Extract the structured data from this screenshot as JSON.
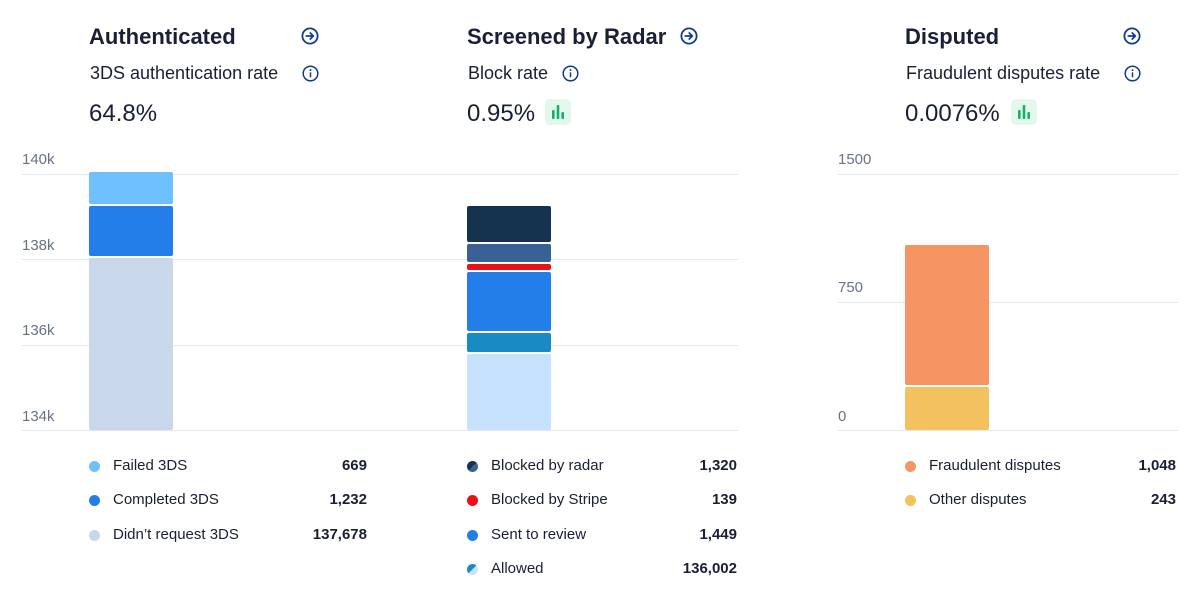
{
  "chart_data": [
    {
      "type": "bar",
      "title": "Authenticated",
      "metric_label": "3DS authentication rate",
      "metric_value": "64.8%",
      "y_ticks": [
        "140k",
        "138k",
        "136k",
        "134k"
      ],
      "ylim": [
        134000,
        140000
      ],
      "series": [
        {
          "name": "Failed 3DS",
          "value": 669,
          "value_label": "669",
          "color": "#6fc0ff"
        },
        {
          "name": "Completed 3DS",
          "value": 1232,
          "value_label": "1,232",
          "color": "#237ee9"
        },
        {
          "name": "Didn’t request 3DS",
          "value": 137678,
          "value_label": "137,678",
          "color": "#c8d8ea"
        }
      ]
    },
    {
      "type": "bar",
      "title": "Screened by Radar",
      "metric_label": "Block rate",
      "metric_value": "0.95%",
      "ylim": [
        134000,
        140000
      ],
      "series": [
        {
          "name": "Blocked by radar",
          "value": 1320,
          "value_label": "1,320",
          "color": "#15334f"
        },
        {
          "name": "Blocked by Stripe",
          "value": 139,
          "value_label": "139",
          "color": "#ea1216"
        },
        {
          "name": "Sent to review",
          "value": 1449,
          "value_label": "1,449",
          "color": "#237ee9"
        },
        {
          "name": "Allowed",
          "value": 136002,
          "value_label": "136,002",
          "color": "#c6e2fe"
        }
      ]
    },
    {
      "type": "bar",
      "title": "Disputed",
      "metric_label": "Fraudulent disputes rate",
      "metric_value": "0.0076%",
      "y_ticks": [
        "1500",
        "750",
        "0"
      ],
      "ylim": [
        0,
        1500
      ],
      "series": [
        {
          "name": "Fraudulent disputes",
          "value": 1048,
          "value_label": "1,048",
          "color": "#f49563"
        },
        {
          "name": "Other disputes",
          "value": 243,
          "value_label": "243",
          "color": "#f3c25e"
        }
      ]
    }
  ],
  "colors": {
    "radar_extra_blue": "#3a6196",
    "radar_extra_teal": "#1a8ac4",
    "icon_accent": "#0f3d8a",
    "spark_green": "#15b06b"
  },
  "icons": {
    "navigate": "arrow-circle-right-icon",
    "info": "info-circle-icon",
    "trend": "bar-chart-icon"
  }
}
